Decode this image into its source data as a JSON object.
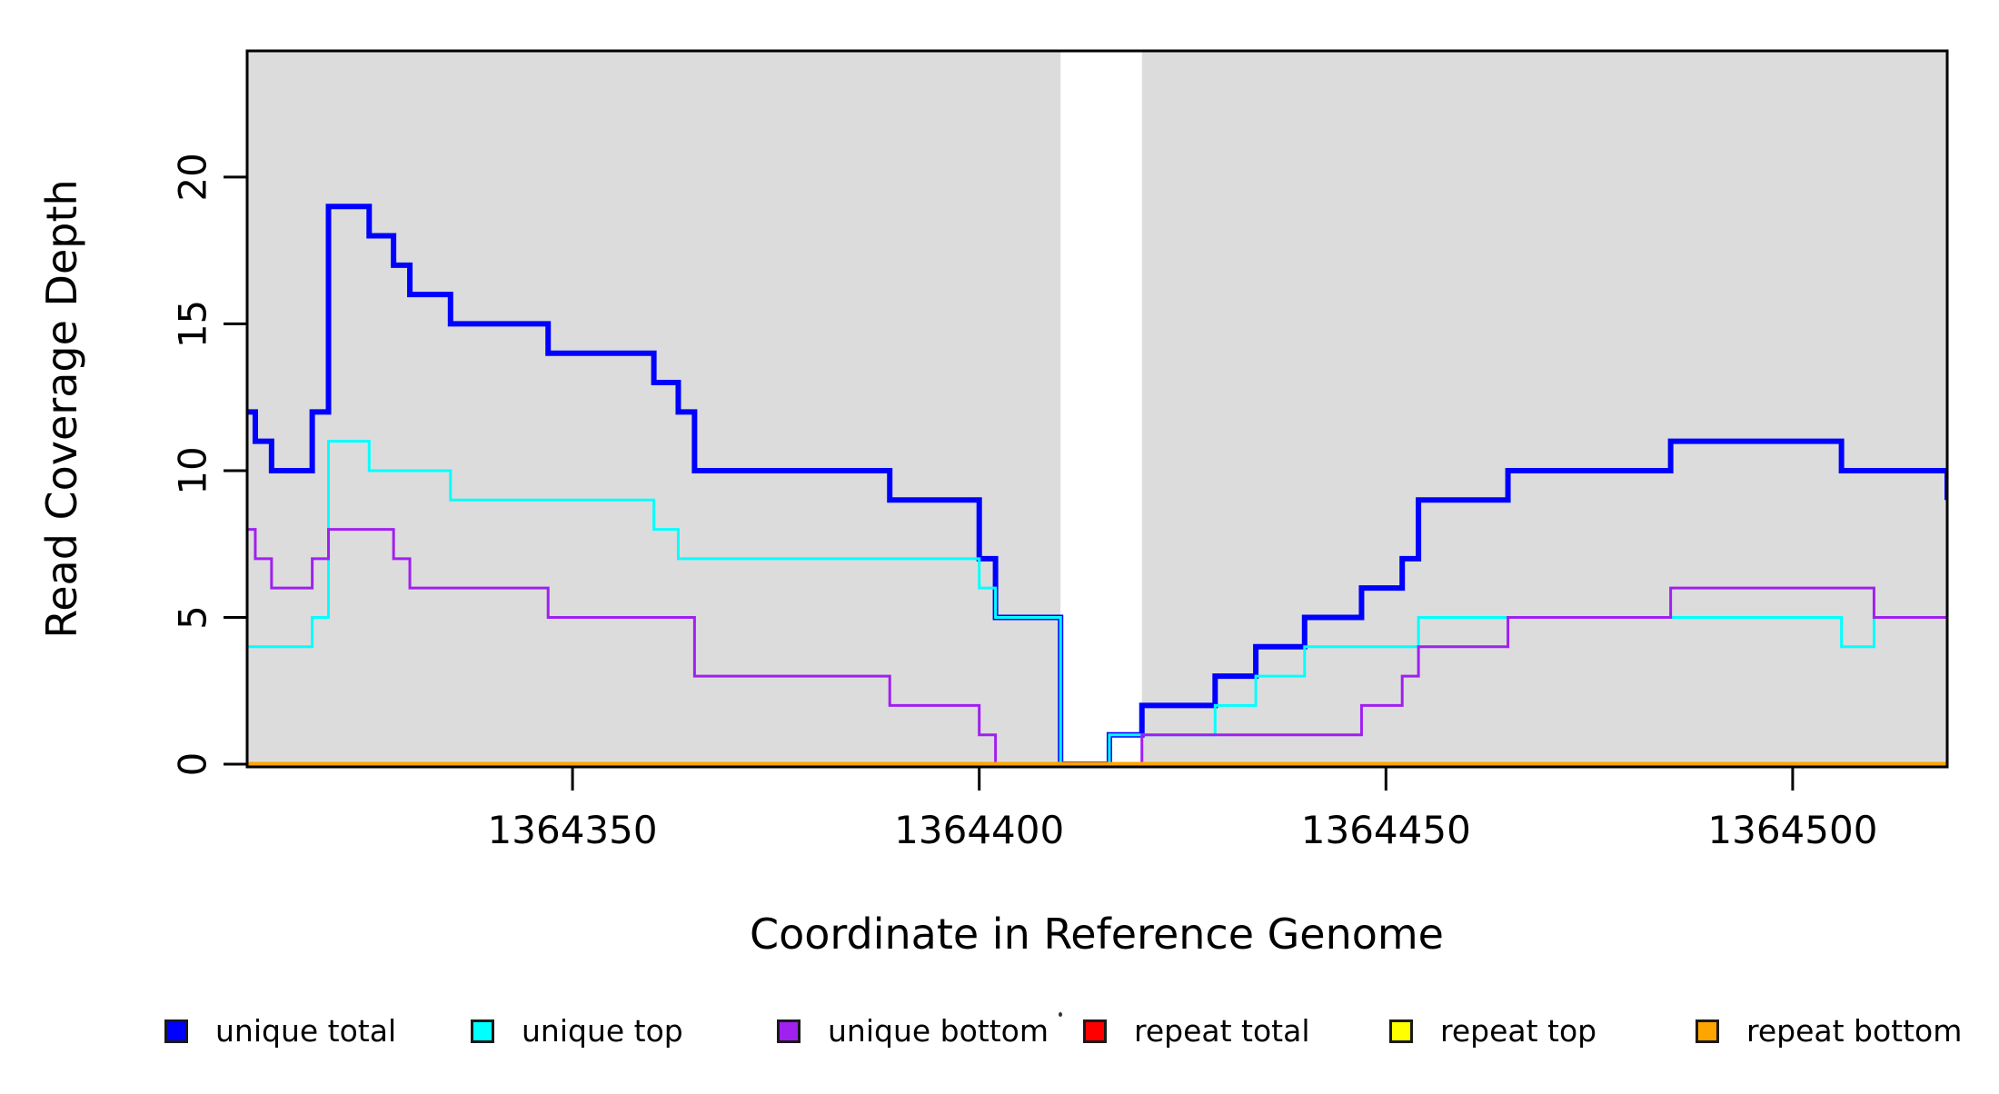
{
  "chart_data": {
    "type": "line",
    "subtype": "step",
    "title": "",
    "xlabel": "Coordinate in Reference Genome",
    "ylabel": "Read Coverage Depth",
    "xlim": [
      1364310,
      1364519
    ],
    "ylim": [
      0,
      24.3
    ],
    "xticks": [
      1364350,
      1364400,
      1364450,
      1364500
    ],
    "xtick_labels": [
      "1364350",
      "1364400",
      "1364450",
      "1364500"
    ],
    "yticks": [
      0,
      5,
      10,
      15,
      20
    ],
    "ytick_labels": [
      "0",
      "5",
      "10",
      "15",
      "20"
    ],
    "grid": false,
    "plot_background": "#DCDCDC",
    "page_background": "#FFFFFF",
    "axis_color": "#000000",
    "white_band": {
      "from": 1364410,
      "to": 1364420,
      "color": "#FFFFFF"
    },
    "legend_position": "bottom",
    "series": [
      {
        "name": "unique total",
        "color": "#0000FF",
        "line_width": 6,
        "points": [
          [
            1364310,
            12
          ],
          [
            1364311,
            11
          ],
          [
            1364313,
            10
          ],
          [
            1364318,
            12
          ],
          [
            1364320,
            19
          ],
          [
            1364325,
            18
          ],
          [
            1364328,
            17
          ],
          [
            1364330,
            16
          ],
          [
            1364335,
            15
          ],
          [
            1364347,
            14
          ],
          [
            1364360,
            13
          ],
          [
            1364363,
            12
          ],
          [
            1364365,
            10
          ],
          [
            1364389,
            9
          ],
          [
            1364400,
            7
          ],
          [
            1364402,
            5
          ],
          [
            1364410,
            0
          ],
          [
            1364416,
            1
          ],
          [
            1364420,
            2
          ],
          [
            1364429,
            3
          ],
          [
            1364434,
            4
          ],
          [
            1364440,
            5
          ],
          [
            1364447,
            6
          ],
          [
            1364452,
            7
          ],
          [
            1364454,
            9
          ],
          [
            1364465,
            10
          ],
          [
            1364485,
            11
          ],
          [
            1364506,
            10
          ],
          [
            1364519,
            9
          ]
        ]
      },
      {
        "name": "unique top",
        "color": "#00FFFF",
        "line_width": 3,
        "points": [
          [
            1364310,
            4
          ],
          [
            1364318,
            5
          ],
          [
            1364320,
            11
          ],
          [
            1364325,
            10
          ],
          [
            1364335,
            9
          ],
          [
            1364360,
            8
          ],
          [
            1364363,
            7
          ],
          [
            1364400,
            6
          ],
          [
            1364402,
            5
          ],
          [
            1364410,
            0
          ],
          [
            1364416,
            1
          ],
          [
            1364429,
            2
          ],
          [
            1364434,
            3
          ],
          [
            1364440,
            4
          ],
          [
            1364454,
            5
          ],
          [
            1364506,
            4
          ],
          [
            1364510,
            5
          ],
          [
            1364519,
            4
          ]
        ]
      },
      {
        "name": "unique bottom",
        "color": "#A020F0",
        "line_width": 3,
        "points": [
          [
            1364310,
            8
          ],
          [
            1364311,
            7
          ],
          [
            1364313,
            6
          ],
          [
            1364318,
            7
          ],
          [
            1364320,
            8
          ],
          [
            1364328,
            7
          ],
          [
            1364330,
            6
          ],
          [
            1364347,
            5
          ],
          [
            1364365,
            3
          ],
          [
            1364389,
            2
          ],
          [
            1364400,
            1
          ],
          [
            1364402,
            0
          ],
          [
            1364420,
            1
          ],
          [
            1364447,
            2
          ],
          [
            1364452,
            3
          ],
          [
            1364454,
            4
          ],
          [
            1364465,
            5
          ],
          [
            1364485,
            6
          ],
          [
            1364510,
            5
          ],
          [
            1364519,
            5
          ]
        ]
      },
      {
        "name": "repeat total",
        "color": "#FF0000",
        "line_width": 3,
        "points": [
          [
            1364310,
            0
          ],
          [
            1364519,
            0
          ]
        ]
      },
      {
        "name": "repeat top",
        "color": "#FFFF00",
        "line_width": 3,
        "points": [
          [
            1364310,
            0
          ],
          [
            1364519,
            0
          ]
        ]
      },
      {
        "name": "repeat bottom",
        "color": "#FFA500",
        "line_width": 5,
        "points": [
          [
            1364310,
            0
          ],
          [
            1364519,
            0
          ]
        ]
      }
    ],
    "legend": [
      {
        "label": "unique total",
        "color": "#0000FF"
      },
      {
        "label": "unique top",
        "color": "#00FFFF"
      },
      {
        "label": "unique bottom",
        "color": "#A020F0"
      },
      {
        "label": "repeat total",
        "color": "#FF0000"
      },
      {
        "label": "repeat top",
        "color": "#FFFF00"
      },
      {
        "label": "repeat bottom",
        "color": "#FFA500"
      }
    ]
  }
}
